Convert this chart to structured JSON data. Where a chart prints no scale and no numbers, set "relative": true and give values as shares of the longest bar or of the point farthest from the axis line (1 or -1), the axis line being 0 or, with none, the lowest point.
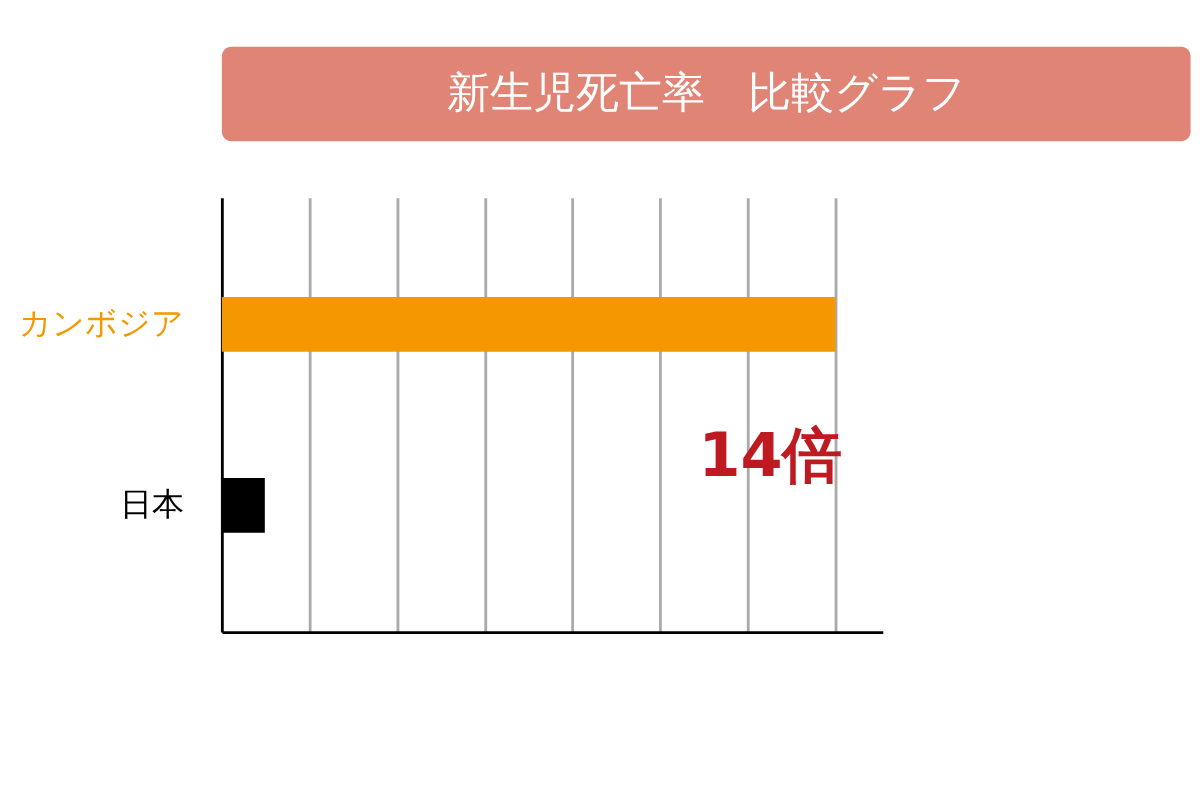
{
  "chart_data": {
    "type": "bar",
    "orientation": "horizontal",
    "relative": true,
    "title": "新生児死亡率　比較グラフ",
    "categories": [
      "カンボジア",
      "日本"
    ],
    "values": [
      1,
      0.07
    ],
    "colors": [
      "#f39800",
      "#000000"
    ],
    "grid": "x",
    "annotations": [
      "14倍"
    ]
  }
}
